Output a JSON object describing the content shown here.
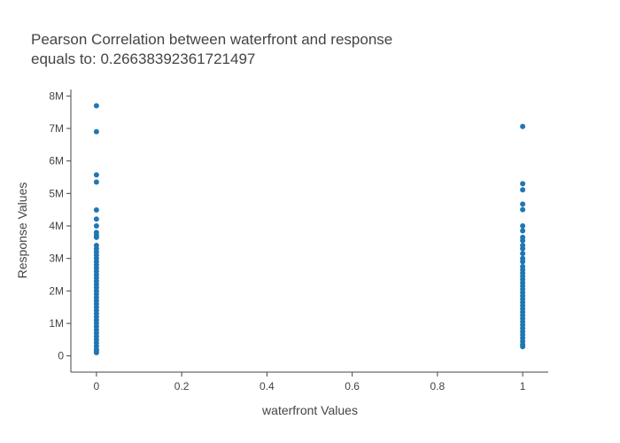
{
  "chart_data": {
    "type": "scatter",
    "title_lines": [
      "Pearson Correlation between waterfront and response",
      "equals to: 0.26638392361721497"
    ],
    "xlabel": "waterfront Values",
    "ylabel": "Response Values",
    "xlim": [
      -0.06,
      1.06
    ],
    "ylim": [
      -500000,
      8200000
    ],
    "x_ticks": [
      0,
      0.2,
      0.4,
      0.6,
      0.8,
      1
    ],
    "x_tick_labels": [
      "0",
      "0.2",
      "0.4",
      "0.6",
      "0.8",
      "1"
    ],
    "y_ticks": [
      0,
      1000000,
      2000000,
      3000000,
      4000000,
      5000000,
      6000000,
      7000000,
      8000000
    ],
    "y_tick_labels": [
      "0",
      "1M",
      "2M",
      "3M",
      "4M",
      "5M",
      "6M",
      "7M",
      "8M"
    ],
    "grid": false,
    "marker_color": "#1f77b4",
    "points": [
      [
        0,
        7700000
      ],
      [
        0,
        6900000
      ],
      [
        0,
        5570000
      ],
      [
        0,
        5350000
      ],
      [
        0,
        4490000
      ],
      [
        0,
        4210000
      ],
      [
        0,
        4000000
      ],
      [
        0,
        3800000
      ],
      [
        0,
        3710000
      ],
      [
        0,
        3650000
      ],
      [
        0,
        3400000
      ],
      [
        0,
        3300000
      ],
      [
        0,
        3200000
      ],
      [
        0,
        3100000
      ],
      [
        0,
        3000000
      ],
      [
        0,
        2900000
      ],
      [
        0,
        2800000
      ],
      [
        0,
        2700000
      ],
      [
        0,
        2600000
      ],
      [
        0,
        2500000
      ],
      [
        0,
        2400000
      ],
      [
        0,
        2300000
      ],
      [
        0,
        2200000
      ],
      [
        0,
        2100000
      ],
      [
        0,
        2000000
      ],
      [
        0,
        1900000
      ],
      [
        0,
        1800000
      ],
      [
        0,
        1700000
      ],
      [
        0,
        1600000
      ],
      [
        0,
        1500000
      ],
      [
        0,
        1400000
      ],
      [
        0,
        1300000
      ],
      [
        0,
        1200000
      ],
      [
        0,
        1100000
      ],
      [
        0,
        1000000
      ],
      [
        0,
        900000
      ],
      [
        0,
        800000
      ],
      [
        0,
        700000
      ],
      [
        0,
        600000
      ],
      [
        0,
        500000
      ],
      [
        0,
        400000
      ],
      [
        0,
        300000
      ],
      [
        0,
        200000
      ],
      [
        0,
        150000
      ],
      [
        0,
        100000
      ],
      [
        1,
        7060000
      ],
      [
        1,
        5300000
      ],
      [
        1,
        5110000
      ],
      [
        1,
        4670000
      ],
      [
        1,
        4500000
      ],
      [
        1,
        4000000
      ],
      [
        1,
        3850000
      ],
      [
        1,
        3650000
      ],
      [
        1,
        3550000
      ],
      [
        1,
        3400000
      ],
      [
        1,
        3300000
      ],
      [
        1,
        3150000
      ],
      [
        1,
        3000000
      ],
      [
        1,
        2900000
      ],
      [
        1,
        2750000
      ],
      [
        1,
        2650000
      ],
      [
        1,
        2550000
      ],
      [
        1,
        2450000
      ],
      [
        1,
        2350000
      ],
      [
        1,
        2250000
      ],
      [
        1,
        2150000
      ],
      [
        1,
        2050000
      ],
      [
        1,
        1950000
      ],
      [
        1,
        1850000
      ],
      [
        1,
        1750000
      ],
      [
        1,
        1650000
      ],
      [
        1,
        1550000
      ],
      [
        1,
        1450000
      ],
      [
        1,
        1350000
      ],
      [
        1,
        1250000
      ],
      [
        1,
        1150000
      ],
      [
        1,
        1050000
      ],
      [
        1,
        950000
      ],
      [
        1,
        850000
      ],
      [
        1,
        750000
      ],
      [
        1,
        650000
      ],
      [
        1,
        550000
      ],
      [
        1,
        450000
      ],
      [
        1,
        350000
      ],
      [
        1,
        285000
      ]
    ]
  }
}
